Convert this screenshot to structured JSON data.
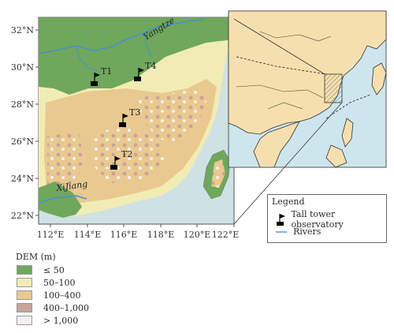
{
  "map": {
    "lat_ticks": [
      "32°N",
      "30°N",
      "28°N",
      "26°N",
      "24°N",
      "22°N"
    ],
    "lon_ticks": [
      "112°E",
      "114°E",
      "116°E",
      "118°E",
      "120°E",
      "122°E"
    ],
    "rivers": {
      "yangtze": "Yangtze",
      "xijiang": "XiJiang"
    },
    "stations": [
      {
        "id": "T1",
        "label": "T1"
      },
      {
        "id": "T2",
        "label": "T2"
      },
      {
        "id": "T3",
        "label": "T3"
      },
      {
        "id": "T4",
        "label": "T4"
      }
    ]
  },
  "dem_legend": {
    "title": "DEM (m)",
    "classes": [
      {
        "label": "≤ 50",
        "color": "#6fa75c"
      },
      {
        "label": "50–100",
        "color": "#f1ecb4"
      },
      {
        "label": "100–400",
        "color": "#e9c98f"
      },
      {
        "label": "400–1,000",
        "color": "#caa49a"
      },
      {
        "label": "> 1,000",
        "color": "#f4f0f0"
      }
    ]
  },
  "inset_legend": {
    "title": "Legend",
    "tower_label": "Tall tower observatory",
    "river_label": "Rivers"
  },
  "colors": {
    "sea": "#cfe2e3",
    "inset_sea": "#cde6ee",
    "inset_land": "#f6dfae",
    "river": "#4a8fd0"
  }
}
